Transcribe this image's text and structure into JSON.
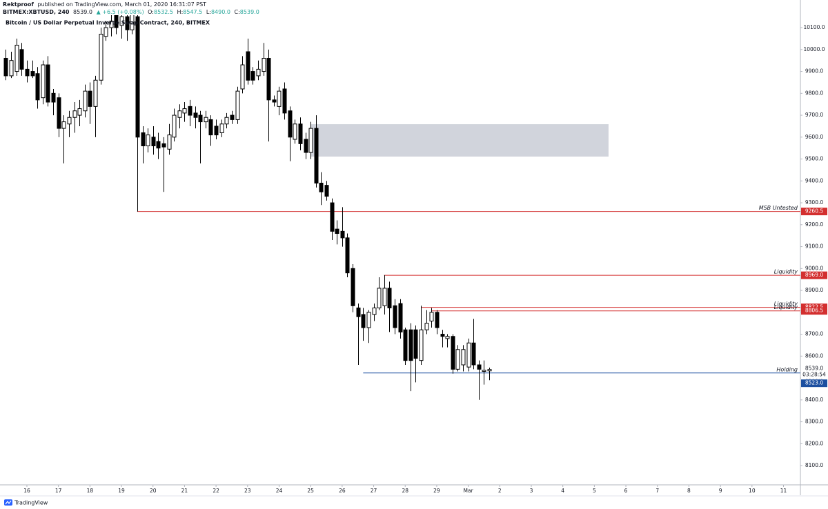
{
  "header": {
    "publisher": "Rektproof",
    "published": "published on TradingView.com, March 01, 2020 16:31:07 PST",
    "symbol": "BITMEX:XBTUSD, 240",
    "last": "8539.0",
    "change": "▲ +6.5 (+0.08%)",
    "ohlc": [
      {
        "key": "O:",
        "value": "8532.5"
      },
      {
        "key": "H:",
        "value": "8547.5"
      },
      {
        "key": "L:",
        "value": "8490.0"
      },
      {
        "key": "C:",
        "value": "8539.0"
      }
    ]
  },
  "footer": {
    "brand": "TradingView"
  },
  "chart_data": {
    "type": "candlestick",
    "title": "Bitcoin / US Dollar Perpetual Inverse Swap Contract, 240, BITMEX",
    "up_color": "#ffffff",
    "down_color": "#000000",
    "border_color": "#000000",
    "xlim": [
      15.147,
      40.536
    ],
    "ylim": [
      8012,
      10138
    ],
    "xticks": [
      16,
      17,
      18,
      19,
      20,
      21,
      22,
      23,
      24,
      25,
      26,
      27,
      28,
      29,
      {
        "value": 30,
        "label": "Mar"
      },
      {
        "value": 31,
        "label": "2"
      },
      {
        "value": 32,
        "label": "3"
      },
      {
        "value": 33,
        "label": "4"
      },
      {
        "value": 34,
        "label": "5"
      },
      {
        "value": 35,
        "label": "6"
      },
      {
        "value": 36,
        "label": "7"
      },
      {
        "value": 37,
        "label": "8"
      },
      {
        "value": 38,
        "label": "9"
      },
      {
        "value": 39,
        "label": "10"
      },
      {
        "value": 40,
        "label": "11"
      }
    ],
    "yticks": [
      {
        "value": 8100,
        "label": "8100.0"
      },
      {
        "value": 8200,
        "label": "8200.0"
      },
      {
        "value": 8300,
        "label": "8300.0"
      },
      {
        "value": 8400,
        "label": "8400.0"
      },
      {
        "value": 8500,
        "label": "8500.0"
      },
      {
        "value": 8600,
        "label": "8600.0"
      },
      {
        "value": 8700,
        "label": "8700.0"
      },
      {
        "value": 8800,
        "label": "8800.0"
      },
      {
        "value": 8900,
        "label": "8900.0"
      },
      {
        "value": 9000,
        "label": "9000.0"
      },
      {
        "value": 9100,
        "label": "9100.0"
      },
      {
        "value": 9200,
        "label": "9200.0"
      },
      {
        "value": 9300,
        "label": "9300.0"
      },
      {
        "value": 9400,
        "label": "9400.0"
      },
      {
        "value": 9500,
        "label": "9500.0"
      },
      {
        "value": 9600,
        "label": "9600.0"
      },
      {
        "value": 9700,
        "label": "9700.0"
      },
      {
        "value": 9800,
        "label": "9800.0"
      },
      {
        "value": 9900,
        "label": "9900.0"
      },
      {
        "value": 10000,
        "label": "10000.0"
      },
      {
        "value": 10100,
        "label": "10100.0"
      }
    ],
    "x": [
      15.333,
      15.5,
      15.667,
      15.833,
      16,
      16.167,
      16.333,
      16.5,
      16.667,
      16.833,
      17,
      17.167,
      17.333,
      17.5,
      17.667,
      17.833,
      18,
      18.167,
      18.333,
      18.5,
      18.667,
      18.833,
      19,
      19.167,
      19.333,
      19.5,
      19.667,
      19.833,
      20,
      20.167,
      20.333,
      20.5,
      20.667,
      20.833,
      21,
      21.167,
      21.333,
      21.5,
      21.667,
      21.833,
      22,
      22.167,
      22.333,
      22.5,
      22.667,
      22.833,
      23,
      23.167,
      23.333,
      23.5,
      23.667,
      23.833,
      24,
      24.167,
      24.333,
      24.5,
      24.667,
      24.833,
      25,
      25.167,
      25.333,
      25.5,
      25.667,
      25.833,
      26,
      26.167,
      26.333,
      26.5,
      26.667,
      26.833,
      27,
      27.167,
      27.333,
      27.5,
      27.667,
      27.833,
      28,
      28.167,
      28.333,
      28.5,
      28.667,
      28.833,
      29,
      29.167,
      29.333,
      29.5,
      29.667,
      29.833,
      30,
      30.167,
      30.333,
      30.5,
      30.667
    ],
    "open": [
      9960,
      9880,
      9900,
      10000,
      9910,
      9900,
      9890,
      9780,
      9930,
      9800,
      9780,
      9640,
      9660,
      9690,
      9700,
      9720,
      9810,
      9740,
      9860,
      10060,
      10100,
      10160,
      10110,
      10150,
      10090,
      10150,
      9620,
      9560,
      9600,
      9580,
      9570,
      9545,
      9600,
      9690,
      9710,
      9740,
      9710,
      9700,
      9670,
      9680,
      9650,
      9620,
      9660,
      9700,
      9680,
      9820,
      9990,
      9900,
      9880,
      9900,
      9960,
      9770,
      9740,
      9820,
      9720,
      9590,
      9660,
      9590,
      9530,
      9640,
      9390,
      9380,
      9300,
      9180,
      9170,
      9140,
      9000,
      8820,
      8790,
      8730,
      8790,
      8820,
      8830,
      8910,
      8830,
      8840,
      8720,
      8720,
      8720,
      8580,
      8720,
      8760,
      8800,
      8700,
      8680,
      8690,
      8540,
      8560,
      8550,
      8660,
      8560,
      8530,
      8532.5
    ],
    "high": [
      10000,
      9990,
      10050,
      10030,
      9950,
      9950,
      9920,
      9950,
      9970,
      9820,
      9800,
      9700,
      9720,
      9760,
      9770,
      9840,
      9850,
      9880,
      10100,
      10130,
      10170,
      10200,
      10190,
      10180,
      10200,
      10190,
      9650,
      9640,
      9650,
      9620,
      9600,
      9660,
      9730,
      9750,
      9760,
      9770,
      9740,
      9720,
      9720,
      9700,
      9680,
      9680,
      9710,
      9720,
      9830,
      9970,
      10050,
      9920,
      9950,
      10030,
      10000,
      9790,
      9830,
      9850,
      9740,
      9680,
      9690,
      9620,
      9670,
      9700,
      9440,
      9400,
      9320,
      9220,
      9280,
      9160,
      9020,
      8840,
      8820,
      8810,
      8840,
      8960,
      8970,
      8940,
      8860,
      8860,
      8730,
      8750,
      8740,
      8830,
      8810,
      8820,
      8810,
      8720,
      8700,
      8700,
      8650,
      8650,
      8680,
      8770,
      8580,
      8580,
      8547.5
    ],
    "low": [
      9860,
      9870,
      9880,
      9880,
      9850,
      9870,
      9730,
      9750,
      9740,
      9700,
      9600,
      9480,
      9600,
      9620,
      9650,
      9690,
      9660,
      9600,
      9840,
      10040,
      10060,
      10070,
      10050,
      10040,
      10070,
      9260,
      9480,
      9530,
      9520,
      9500,
      9350,
      9520,
      9580,
      9640,
      9670,
      9650,
      9640,
      9480,
      9640,
      9560,
      9590,
      9600,
      9640,
      9660,
      9660,
      9800,
      9840,
      9840,
      9860,
      9880,
      9580,
      9740,
      9700,
      9680,
      9490,
      9570,
      9540,
      9500,
      9500,
      9370,
      9290,
      9310,
      9130,
      9110,
      9100,
      8960,
      8800,
      8560,
      8670,
      8660,
      8760,
      8810,
      8790,
      8710,
      8700,
      8680,
      8560,
      8440,
      8480,
      8560,
      8700,
      8730,
      8700,
      8640,
      8640,
      8520,
      8530,
      8530,
      8530,
      8540,
      8400,
      8470,
      8490
    ],
    "close": [
      9880,
      9950,
      10020,
      9910,
      9880,
      9880,
      9770,
      9930,
      9760,
      9760,
      9640,
      9670,
      9690,
      9720,
      9730,
      9810,
      9740,
      9860,
      10070,
      10100,
      10130,
      10100,
      10150,
      10090,
      10160,
      9600,
      9560,
      9610,
      9560,
      9550,
      9555,
      9610,
      9700,
      9720,
      9730,
      9700,
      9690,
      9670,
      9690,
      9610,
      9610,
      9660,
      9690,
      9680,
      9810,
      9930,
      9860,
      9860,
      9910,
      9960,
      9770,
      9760,
      9810,
      9710,
      9600,
      9660,
      9570,
      9530,
      9640,
      9390,
      9350,
      9330,
      9170,
      9160,
      9140,
      8980,
      8830,
      8780,
      8730,
      8800,
      8820,
      8910,
      8910,
      8820,
      8730,
      8710,
      8580,
      8580,
      8590,
      8720,
      8750,
      8800,
      8730,
      8690,
      8690,
      8540,
      8630,
      8630,
      8660,
      8560,
      8540,
      8535,
      8539
    ],
    "zones": [
      {
        "x": [
          25.0,
          34.45
        ],
        "y": [
          9511,
          9659
        ],
        "color": "#d1d4dc"
      }
    ],
    "levels": [
      {
        "name": "MSB Untested",
        "value": 9260.5,
        "start": 19.5,
        "color": "#d32f2f"
      },
      {
        "name": "Liquidity",
        "value": 8969,
        "value_label": "8969.0",
        "start": 27.333,
        "color": "#d32f2f"
      },
      {
        "name": "Liquidity",
        "value": 8822.5,
        "start": 28.5,
        "color": "#d32f2f"
      },
      {
        "name": "Liquidity",
        "value": 8806.5,
        "start": 28.833,
        "color": "#d32f2f"
      },
      {
        "name": "Holding",
        "value": 8523,
        "value_label": "8523.0",
        "start": 26.667,
        "color": "#1c4fa0"
      }
    ],
    "last_price": {
      "value": 8539,
      "label": "8539.0",
      "countdown": "03:28:54"
    }
  }
}
